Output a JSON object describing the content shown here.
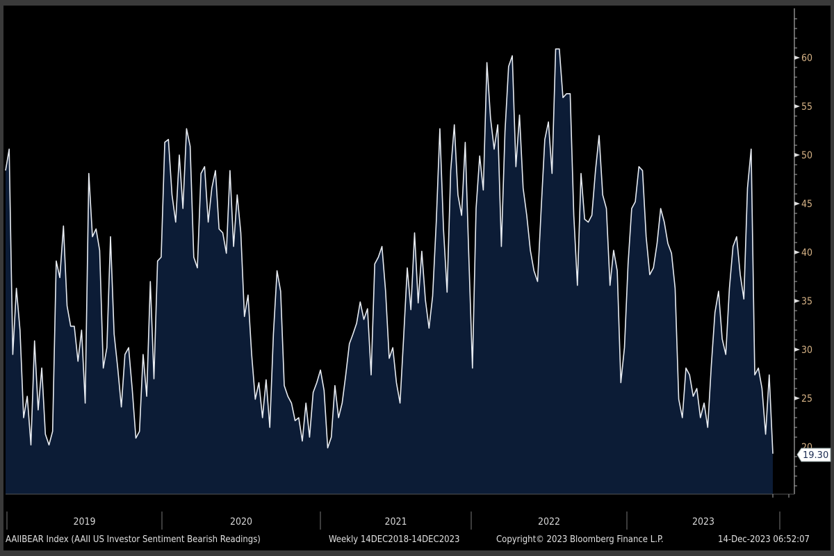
{
  "chart_data": {
    "type": "area",
    "title": "AAIIBEAR Index (AAII US Investor Sentiment Bearish Readings)",
    "frequency": "Weekly",
    "date_range": "14DEC2018-14DEC2023",
    "x_range": [
      "2018-12-14",
      "2023-12-14"
    ],
    "xlabel": "",
    "ylabel": "",
    "x_tick_labels": [
      "2019",
      "2020",
      "2021",
      "2022",
      "2023"
    ],
    "y_tick_labels": [
      "25",
      "30",
      "35",
      "40",
      "45",
      "50",
      "55",
      "60"
    ],
    "y_ticks": [
      25,
      30,
      35,
      40,
      45,
      50,
      55,
      60
    ],
    "ylim": [
      15,
      65
    ],
    "grid": false,
    "axis_position": "right",
    "series": [
      {
        "name": "AAIIBEAR Index",
        "line_color": "#e8ecf2",
        "fill_color": "#0c1c36",
        "values": [
          48.4,
          50.6,
          29.5,
          36.3,
          32,
          23,
          25.2,
          20.2,
          30.9,
          23.8,
          28.1,
          21.3,
          20.2,
          21.6,
          39.1,
          37.4,
          42.7,
          34.5,
          32.4,
          32.4,
          28.8,
          32,
          24.5,
          48.1,
          41.6,
          42.4,
          40.2,
          28.1,
          30.2,
          41.6,
          31.6,
          28.1,
          24.1,
          29.5,
          30.2,
          25.9,
          20.9,
          21.6,
          29.5,
          25.2,
          37,
          27,
          39.1,
          39.5,
          51.3,
          51.6,
          45.9,
          43.1,
          50,
          44.5,
          52.7,
          50.9,
          39.5,
          38.4,
          48.1,
          48.8,
          43.1,
          46.6,
          48.4,
          42.4,
          42,
          39.9,
          48.4,
          40.6,
          45.9,
          42,
          33.4,
          35.6,
          29.5,
          24.9,
          26.6,
          23,
          26.9,
          22,
          31.6,
          38.1,
          36,
          26.3,
          25.2,
          24.5,
          22.7,
          23,
          20.6,
          24.5,
          21,
          25.6,
          26.6,
          27.9,
          25.8,
          19.9,
          21,
          26.3,
          23,
          24.5,
          27.4,
          30.6,
          31.6,
          32.7,
          34.9,
          33.1,
          34.2,
          27.4,
          38.8,
          39.5,
          40.6,
          36,
          29.1,
          30.2,
          26.6,
          24.5,
          31.3,
          38.4,
          34.1,
          42,
          34.8,
          40.1,
          35.1,
          32.2,
          35.5,
          43.1,
          52.7,
          42.4,
          35.9,
          48.4,
          53.1,
          45.9,
          43.8,
          51.3,
          39.5,
          28.1,
          44.5,
          49.9,
          46.4,
          59.5,
          53.8,
          50.6,
          53.1,
          40.6,
          52.4,
          59.1,
          60.2,
          48.8,
          54.1,
          46.6,
          43.8,
          40.2,
          38.1,
          37,
          44.5,
          51.6,
          53.4,
          48.1,
          60.9,
          60.9,
          55.9,
          56.3,
          56.3,
          43.8,
          36.6,
          48.1,
          43.4,
          43.1,
          43.8,
          48.4,
          52,
          45.9,
          44.5,
          36.6,
          40.2,
          38.1,
          26.6,
          30.2,
          38.8,
          44.5,
          45.2,
          48.8,
          48.4,
          41.6,
          37.7,
          38.4,
          40.9,
          44.5,
          43.1,
          40.9,
          39.9,
          36.3,
          24.9,
          23,
          28.1,
          27.4,
          25.2,
          26,
          23,
          24.5,
          22,
          28.4,
          33.8,
          36,
          31.1,
          29.5,
          36.3,
          40.6,
          41.6,
          37.7,
          35.2,
          46.6,
          50.6,
          27.4,
          28.1,
          26,
          21.3,
          27.4,
          19.3
        ]
      }
    ],
    "last_value": 19.3,
    "last_value_label": "19.30"
  },
  "footer": {
    "description": "AAIIBEAR Index (AAII US Investor Sentiment Bearish Readings)",
    "range": "Weekly 14DEC2018-14DEC2023",
    "copyright": "Copyright© 2023 Bloomberg Finance L.P.",
    "timestamp": "14-Dec-2023 06:52:07"
  }
}
